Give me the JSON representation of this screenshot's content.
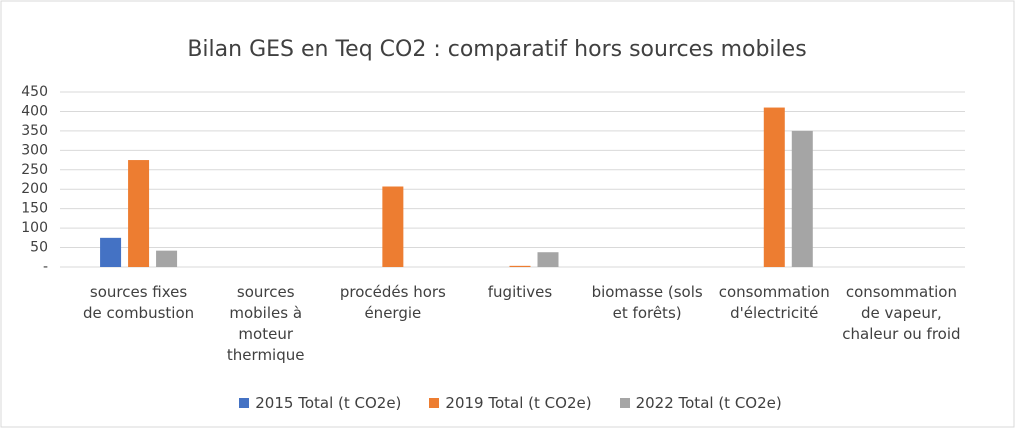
{
  "chart_data": {
    "type": "bar",
    "title": "Bilan GES en Teq CO2 : comparatif hors sources mobiles",
    "categories": [
      "sources fixes de combustion",
      "sources mobiles à moteur thermique",
      "procédés hors énergie",
      "fugitives",
      "biomasse (sols et forêts)",
      "consommation d'électricité",
      "consommation de vapeur, chaleur ou froid"
    ],
    "series": [
      {
        "name": "2015 Total (t CO2e)",
        "color": "#4472c4",
        "values": [
          75,
          0,
          0,
          0,
          0,
          0,
          0
        ]
      },
      {
        "name": "2019 Total (t CO2e)",
        "color": "#ed7d31",
        "values": [
          275,
          0,
          207,
          3,
          0,
          410,
          0
        ]
      },
      {
        "name": "2022 Total (t CO2e)",
        "color": "#a5a5a5",
        "values": [
          42,
          0,
          0,
          38,
          0,
          350,
          0
        ]
      }
    ],
    "ylim": [
      0,
      450
    ],
    "yticks": [
      {
        "value": 0,
        "label": "-"
      },
      50,
      100,
      150,
      200,
      250,
      300,
      350,
      400,
      450
    ],
    "grid": true,
    "legend": "bottom"
  }
}
